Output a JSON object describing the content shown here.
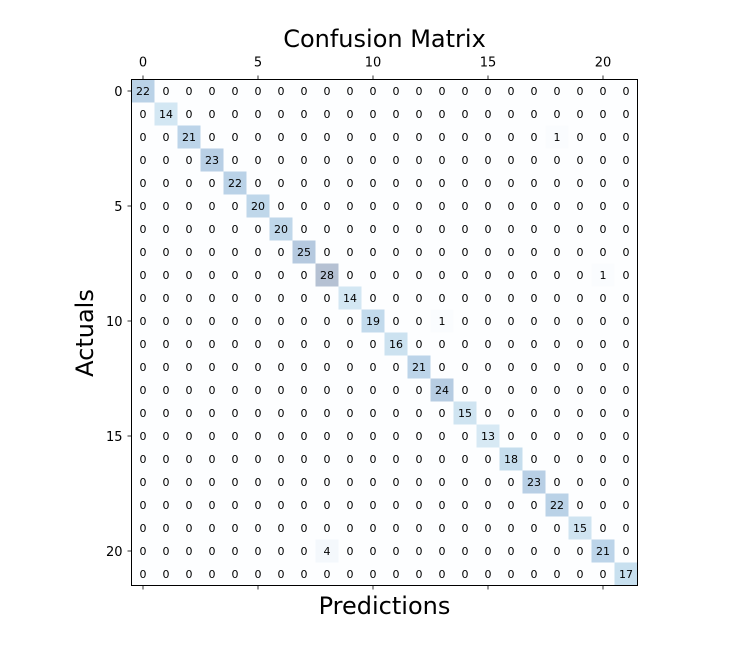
{
  "chart_data": {
    "type": "heatmap",
    "title": "Confusion Matrix",
    "xlabel": "Predictions",
    "ylabel": "Actuals",
    "x_axis_position": "top",
    "x_ticks": [
      0,
      5,
      10,
      15,
      20
    ],
    "y_ticks": [
      0,
      5,
      10,
      15,
      20
    ],
    "colormap": "Blues",
    "cell_alpha": 0.3,
    "grid": false,
    "matrix": [
      [
        22,
        0,
        0,
        0,
        0,
        0,
        0,
        0,
        0,
        0,
        0,
        0,
        0,
        0,
        0,
        0,
        0,
        0,
        0,
        0,
        0,
        0
      ],
      [
        0,
        14,
        0,
        0,
        0,
        0,
        0,
        0,
        0,
        0,
        0,
        0,
        0,
        0,
        0,
        0,
        0,
        0,
        0,
        0,
        0,
        0
      ],
      [
        0,
        0,
        21,
        0,
        0,
        0,
        0,
        0,
        0,
        0,
        0,
        0,
        0,
        0,
        0,
        0,
        0,
        0,
        1,
        0,
        0,
        0
      ],
      [
        0,
        0,
        0,
        23,
        0,
        0,
        0,
        0,
        0,
        0,
        0,
        0,
        0,
        0,
        0,
        0,
        0,
        0,
        0,
        0,
        0,
        0
      ],
      [
        0,
        0,
        0,
        0,
        22,
        0,
        0,
        0,
        0,
        0,
        0,
        0,
        0,
        0,
        0,
        0,
        0,
        0,
        0,
        0,
        0,
        0
      ],
      [
        0,
        0,
        0,
        0,
        0,
        20,
        0,
        0,
        0,
        0,
        0,
        0,
        0,
        0,
        0,
        0,
        0,
        0,
        0,
        0,
        0,
        0
      ],
      [
        0,
        0,
        0,
        0,
        0,
        0,
        20,
        0,
        0,
        0,
        0,
        0,
        0,
        0,
        0,
        0,
        0,
        0,
        0,
        0,
        0,
        0
      ],
      [
        0,
        0,
        0,
        0,
        0,
        0,
        0,
        25,
        0,
        0,
        0,
        0,
        0,
        0,
        0,
        0,
        0,
        0,
        0,
        0,
        0,
        0
      ],
      [
        0,
        0,
        0,
        0,
        0,
        0,
        0,
        0,
        28,
        0,
        0,
        0,
        0,
        0,
        0,
        0,
        0,
        0,
        0,
        0,
        1,
        0
      ],
      [
        0,
        0,
        0,
        0,
        0,
        0,
        0,
        0,
        0,
        14,
        0,
        0,
        0,
        0,
        0,
        0,
        0,
        0,
        0,
        0,
        0,
        0
      ],
      [
        0,
        0,
        0,
        0,
        0,
        0,
        0,
        0,
        0,
        0,
        19,
        0,
        0,
        1,
        0,
        0,
        0,
        0,
        0,
        0,
        0,
        0
      ],
      [
        0,
        0,
        0,
        0,
        0,
        0,
        0,
        0,
        0,
        0,
        0,
        16,
        0,
        0,
        0,
        0,
        0,
        0,
        0,
        0,
        0,
        0
      ],
      [
        0,
        0,
        0,
        0,
        0,
        0,
        0,
        0,
        0,
        0,
        0,
        0,
        21,
        0,
        0,
        0,
        0,
        0,
        0,
        0,
        0,
        0
      ],
      [
        0,
        0,
        0,
        0,
        0,
        0,
        0,
        0,
        0,
        0,
        0,
        0,
        0,
        24,
        0,
        0,
        0,
        0,
        0,
        0,
        0,
        0
      ],
      [
        0,
        0,
        0,
        0,
        0,
        0,
        0,
        0,
        0,
        0,
        0,
        0,
        0,
        0,
        15,
        0,
        0,
        0,
        0,
        0,
        0,
        0
      ],
      [
        0,
        0,
        0,
        0,
        0,
        0,
        0,
        0,
        0,
        0,
        0,
        0,
        0,
        0,
        0,
        13,
        0,
        0,
        0,
        0,
        0,
        0
      ],
      [
        0,
        0,
        0,
        0,
        0,
        0,
        0,
        0,
        0,
        0,
        0,
        0,
        0,
        0,
        0,
        0,
        18,
        0,
        0,
        0,
        0,
        0
      ],
      [
        0,
        0,
        0,
        0,
        0,
        0,
        0,
        0,
        0,
        0,
        0,
        0,
        0,
        0,
        0,
        0,
        0,
        23,
        0,
        0,
        0,
        0
      ],
      [
        0,
        0,
        0,
        0,
        0,
        0,
        0,
        0,
        0,
        0,
        0,
        0,
        0,
        0,
        0,
        0,
        0,
        0,
        22,
        0,
        0,
        0
      ],
      [
        0,
        0,
        0,
        0,
        0,
        0,
        0,
        0,
        0,
        0,
        0,
        0,
        0,
        0,
        0,
        0,
        0,
        0,
        0,
        15,
        0,
        0
      ],
      [
        0,
        0,
        0,
        0,
        0,
        0,
        0,
        0,
        4,
        0,
        0,
        0,
        0,
        0,
        0,
        0,
        0,
        0,
        0,
        0,
        21,
        0
      ],
      [
        0,
        0,
        0,
        0,
        0,
        0,
        0,
        0,
        0,
        0,
        0,
        0,
        0,
        0,
        0,
        0,
        0,
        0,
        0,
        0,
        0,
        17
      ]
    ]
  }
}
